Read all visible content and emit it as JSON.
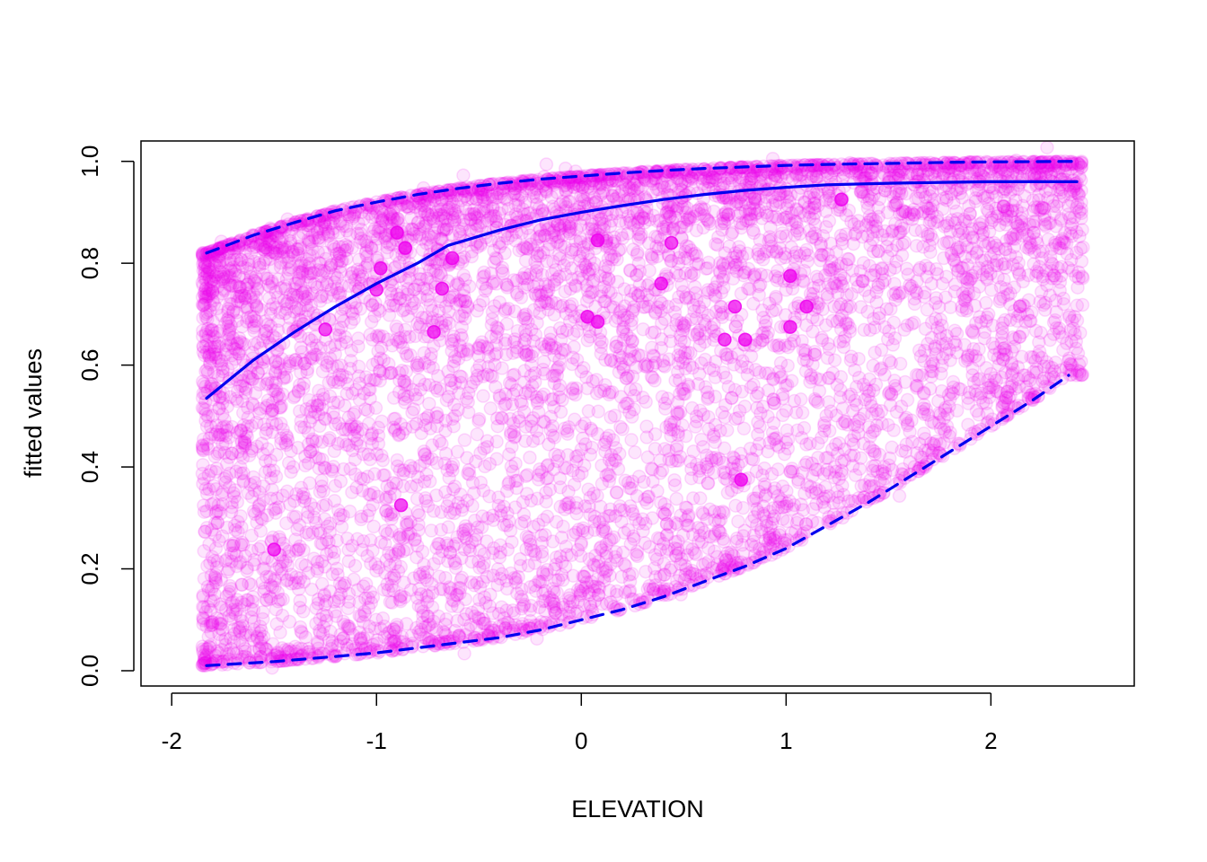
{
  "chart_data": {
    "type": "scatter",
    "title": "",
    "xlabel": "ELEVATION",
    "ylabel": "fitted values",
    "xlim": [
      -2.15,
      2.7
    ],
    "ylim": [
      -0.03,
      1.04
    ],
    "x_ticks": [
      -2,
      -1,
      0,
      1,
      2
    ],
    "x_tick_labels": [
      "-2",
      "-1",
      "0",
      "1",
      "2"
    ],
    "y_ticks": [
      0.0,
      0.2,
      0.4,
      0.6,
      0.8,
      1.0
    ],
    "y_tick_labels": [
      "0.0",
      "0.2",
      "0.4",
      "0.6",
      "0.8",
      "1.0"
    ],
    "grid": false,
    "point_color": "#EE00EE",
    "point_alpha": 0.1,
    "line_color": "#0000EE",
    "point_cloud": {
      "count": 7000,
      "x_range": [
        -1.85,
        2.45
      ],
      "note_distribution": "points lie between lower and upper curves, denser near both bounds"
    },
    "series": [
      {
        "style": "solid",
        "x": [
          -1.83,
          -1.6,
          -1.4,
          -1.2,
          -1.0,
          -0.8,
          -0.65,
          -0.4,
          -0.2,
          0.0,
          0.2,
          0.4,
          0.6,
          0.8,
          1.0,
          1.2,
          1.5,
          1.8,
          2.0,
          2.42
        ],
        "y": [
          0.535,
          0.61,
          0.665,
          0.715,
          0.76,
          0.8,
          0.835,
          0.865,
          0.885,
          0.9,
          0.913,
          0.925,
          0.935,
          0.943,
          0.949,
          0.954,
          0.957,
          0.959,
          0.96,
          0.96
        ]
      },
      {
        "style": "dashed",
        "x": [
          -1.83,
          -1.6,
          -1.4,
          -1.2,
          -1.0,
          -0.8,
          -0.6,
          -0.4,
          -0.2,
          0.0,
          0.2,
          0.4,
          0.6,
          0.8,
          1.0,
          1.2,
          1.5,
          1.8,
          2.0,
          2.42
        ],
        "y": [
          0.82,
          0.855,
          0.88,
          0.903,
          0.92,
          0.935,
          0.947,
          0.957,
          0.965,
          0.971,
          0.977,
          0.982,
          0.986,
          0.989,
          0.992,
          0.994,
          0.996,
          0.998,
          0.999,
          1.0
        ]
      },
      {
        "style": "dashed",
        "x": [
          -1.83,
          -1.5,
          -1.2,
          -1.0,
          -0.8,
          -0.6,
          -0.4,
          -0.2,
          0.0,
          0.2,
          0.4,
          0.6,
          0.8,
          1.0,
          1.2,
          1.4,
          1.6,
          1.8,
          2.0,
          2.2,
          2.38
        ],
        "y": [
          0.01,
          0.018,
          0.028,
          0.035,
          0.045,
          0.055,
          0.065,
          0.08,
          0.1,
          0.12,
          0.145,
          0.175,
          0.205,
          0.24,
          0.285,
          0.33,
          0.38,
          0.43,
          0.48,
          0.53,
          0.58
        ]
      }
    ],
    "highlight_points": [
      {
        "x": -1.5,
        "y": 0.238
      },
      {
        "x": -1.25,
        "y": 0.67
      },
      {
        "x": -1.0,
        "y": 0.748
      },
      {
        "x": -0.98,
        "y": 0.79
      },
      {
        "x": -0.9,
        "y": 0.86
      },
      {
        "x": -0.86,
        "y": 0.83
      },
      {
        "x": -0.88,
        "y": 0.325
      },
      {
        "x": -0.72,
        "y": 0.665
      },
      {
        "x": -0.68,
        "y": 0.75
      },
      {
        "x": -0.63,
        "y": 0.81
      },
      {
        "x": 0.08,
        "y": 0.845
      },
      {
        "x": 0.03,
        "y": 0.695
      },
      {
        "x": 0.08,
        "y": 0.685
      },
      {
        "x": 0.39,
        "y": 0.76
      },
      {
        "x": 0.44,
        "y": 0.84
      },
      {
        "x": 0.7,
        "y": 0.65
      },
      {
        "x": 0.75,
        "y": 0.715
      },
      {
        "x": 0.78,
        "y": 0.375
      },
      {
        "x": 0.8,
        "y": 0.65
      },
      {
        "x": 1.02,
        "y": 0.775
      },
      {
        "x": 1.02,
        "y": 0.675
      },
      {
        "x": 1.1,
        "y": 0.715
      },
      {
        "x": 1.27,
        "y": 0.925
      }
    ]
  }
}
